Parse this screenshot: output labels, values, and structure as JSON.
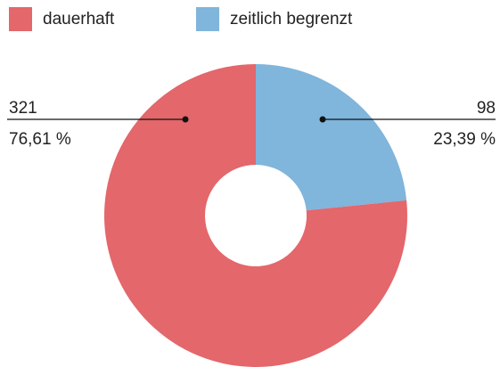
{
  "chart_data": {
    "type": "donut",
    "categories": [
      "dauerhaft",
      "zeitlich begrenzt"
    ],
    "values": [
      321,
      98
    ],
    "percentages": [
      76.61,
      23.39
    ],
    "percentage_labels": [
      "76,61 %",
      "23,39 %"
    ],
    "colors": [
      "#e3676b",
      "#80b5dc"
    ],
    "legend": "top-left"
  }
}
